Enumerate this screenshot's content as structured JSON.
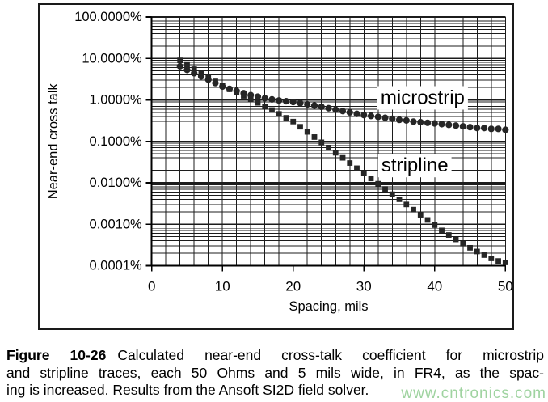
{
  "caption": {
    "label": "Figure 10-26",
    "line1": "Calculated near-end cross-talk coefficient for microstrip",
    "line2": "and stripline traces, each 50 Ohms and 5 mils wide, in FR4, as the spac-",
    "line3": "ing is increased. Results from the Ansoft SI2D field solver."
  },
  "watermark": {
    "text": "www.cntronics.com",
    "color": "#9fd3a0"
  },
  "colors": {
    "marker": "#262626",
    "grid": "#1c1c1c",
    "frame": "#1a1a1a",
    "background": "#ffffff"
  },
  "chart_data": {
    "type": "scatter",
    "title": "",
    "xlabel": "Spacing, mils",
    "ylabel": "Near-end cross talk",
    "xlim": [
      0,
      50
    ],
    "x_ticks": [
      0,
      10,
      20,
      30,
      40,
      50
    ],
    "x_grid_step_mils": 2,
    "y_scale": "log",
    "ylim_pct": [
      0.0001,
      100
    ],
    "y_decade_labels": [
      "100.0000%",
      "10.0000%",
      "1.0000%",
      "0.1000%",
      "0.0100%",
      "0.0010%",
      "0.0001%"
    ],
    "grid": "both-major-and-log-minor",
    "legend_position": "inline-labels-on-plot",
    "series": [
      {
        "name": "stripline",
        "label": "stripline",
        "marker": "square",
        "label_at": {
          "x_mils": 37.2,
          "y_pct": 0.026
        },
        "x_mils": [
          4,
          5,
          6,
          7,
          8,
          9,
          10,
          11,
          12,
          13,
          14,
          15,
          16,
          17,
          18,
          19,
          20,
          21,
          22,
          23,
          24,
          25,
          26,
          27,
          28,
          29,
          30,
          31,
          32,
          33,
          34,
          35,
          36,
          37,
          38,
          39,
          40,
          41,
          42,
          43,
          44,
          45,
          46,
          47,
          48,
          49,
          50
        ],
        "next_pct": [
          9.0,
          7.0,
          5.5,
          4.4,
          3.5,
          2.8,
          2.2,
          1.8,
          1.5,
          1.25,
          1.03,
          0.85,
          0.7,
          0.57,
          0.46,
          0.37,
          0.3,
          0.225,
          0.169,
          0.127,
          0.095,
          0.071,
          0.053,
          0.04,
          0.03,
          0.0225,
          0.0169,
          0.0127,
          0.0095,
          0.0071,
          0.0053,
          0.004,
          0.003,
          0.00225,
          0.00169,
          0.00127,
          0.00095,
          0.00071,
          0.00055,
          0.00043,
          0.00034,
          0.00027,
          0.00022,
          0.00018,
          0.00015,
          0.00013,
          0.00012
        ]
      },
      {
        "name": "microstrip",
        "label": "microstrip",
        "marker": "circle",
        "label_at": {
          "x_mils": 38.3,
          "y_pct": 1.12
        },
        "x_mils": [
          4,
          5,
          6,
          7,
          8,
          9,
          10,
          11,
          12,
          13,
          14,
          15,
          16,
          17,
          18,
          19,
          20,
          21,
          22,
          23,
          24,
          25,
          26,
          27,
          28,
          29,
          30,
          31,
          32,
          33,
          34,
          35,
          36,
          37,
          38,
          39,
          40,
          41,
          42,
          43,
          44,
          45,
          46,
          47,
          48,
          49,
          50
        ],
        "next_pct": [
          6.5,
          5.3,
          4.4,
          3.7,
          3.1,
          2.55,
          2.1,
          1.85,
          1.65,
          1.45,
          1.3,
          1.2,
          1.1,
          1.03,
          0.97,
          0.93,
          0.89,
          0.83,
          0.78,
          0.73,
          0.68,
          0.63,
          0.58,
          0.54,
          0.5,
          0.46,
          0.43,
          0.41,
          0.39,
          0.37,
          0.35,
          0.33,
          0.32,
          0.3,
          0.29,
          0.28,
          0.27,
          0.26,
          0.25,
          0.24,
          0.23,
          0.22,
          0.21,
          0.21,
          0.2,
          0.2,
          0.19
        ]
      }
    ]
  }
}
